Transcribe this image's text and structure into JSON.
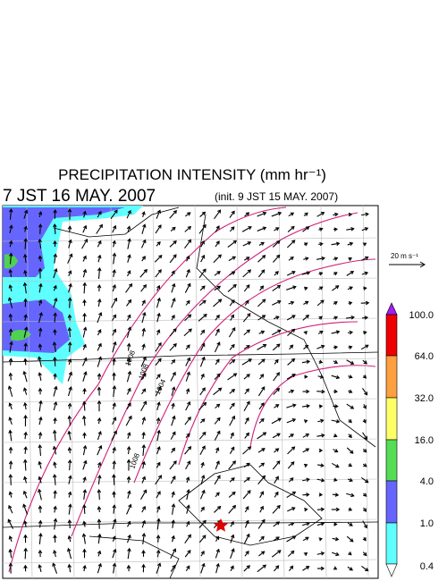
{
  "header": {
    "title": "PRECIPITATION INTENSITY (mm hr⁻¹)",
    "valid_time": "7 JST 16 MAY. 2007",
    "init_time": "(init. 9 JST 15 MAY. 2007)"
  },
  "vector_scale": "20 m s⁻¹",
  "colorbar": {
    "labels": [
      "100.0",
      "64.0",
      "32.0",
      "16.0",
      "4.0",
      "1.0",
      "0.4"
    ]
  },
  "isobars": {
    "labels": [
      "1008",
      "1008",
      "1004",
      "1008"
    ]
  }
}
